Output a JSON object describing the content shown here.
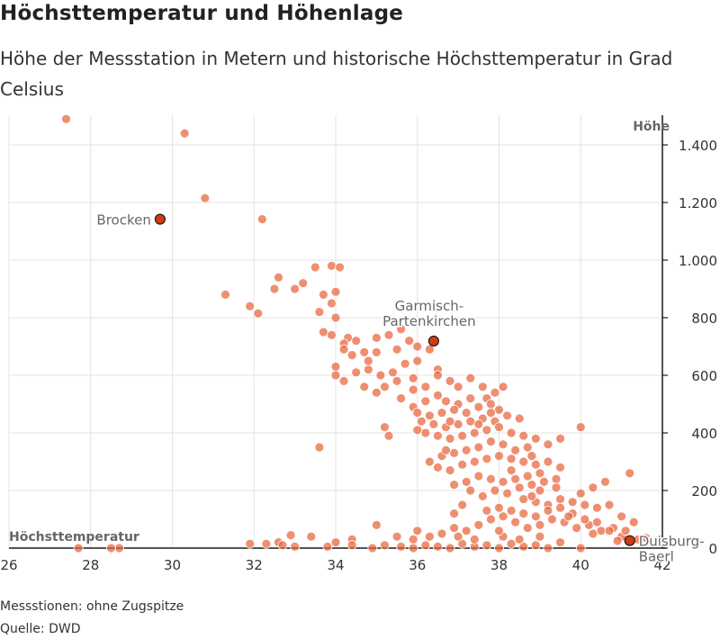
{
  "title": "Höchsttemperatur und Höhenlage",
  "subtitle": "Höhe der Messstation in Metern und historische Höchsttemperatur in Grad Celsius",
  "note": "Messstionen: ohne Zugspitze",
  "source": "Quelle: DWD",
  "colors": {
    "point": "#e8643c",
    "highlight": "#d23a12",
    "grid": "#e3e3e3",
    "axis": "#1a1a1a",
    "label": "#666666"
  },
  "chart_data": {
    "type": "scatter",
    "xlabel": "Höchsttemperatur",
    "ylabel": "Höhe",
    "xlim": [
      26,
      42
    ],
    "ylim": [
      0,
      1500
    ],
    "xticks": [
      26,
      28,
      30,
      32,
      34,
      36,
      38,
      40,
      42
    ],
    "xtick_labels": [
      "26",
      "28",
      "30",
      "32",
      "34",
      "36",
      "38",
      "40",
      "42"
    ],
    "yticks": [
      0,
      200,
      400,
      600,
      800,
      1000,
      1200,
      1400
    ],
    "ytick_labels": [
      "0",
      "200",
      "400",
      "600",
      "800",
      "1.000",
      "1.200",
      "1.400"
    ],
    "grid": true,
    "highlighted": [
      {
        "label": "Brocken",
        "x": 29.7,
        "y": 1142
      },
      {
        "label": "Garmisch-Partenkirchen",
        "x": 36.4,
        "y": 719
      },
      {
        "label": "Duisburg-Baerl",
        "x": 41.2,
        "y": 26
      }
    ],
    "points": [
      [
        27.4,
        1490
      ],
      [
        30.3,
        1440
      ],
      [
        30.8,
        1215
      ],
      [
        32.2,
        1142
      ],
      [
        32.6,
        940
      ],
      [
        32.5,
        900
      ],
      [
        33.0,
        900
      ],
      [
        33.2,
        920
      ],
      [
        31.3,
        880
      ],
      [
        31.9,
        840
      ],
      [
        32.1,
        815
      ],
      [
        33.5,
        975
      ],
      [
        33.9,
        980
      ],
      [
        34.1,
        975
      ],
      [
        33.7,
        880
      ],
      [
        33.9,
        850
      ],
      [
        34.0,
        890
      ],
      [
        33.6,
        820
      ],
      [
        34.0,
        800
      ],
      [
        33.7,
        750
      ],
      [
        33.9,
        740
      ],
      [
        34.3,
        730
      ],
      [
        34.2,
        710
      ],
      [
        34.5,
        720
      ],
      [
        35.0,
        730
      ],
      [
        35.3,
        740
      ],
      [
        35.6,
        760
      ],
      [
        35.8,
        720
      ],
      [
        36.0,
        700
      ],
      [
        35.5,
        690
      ],
      [
        35.0,
        680
      ],
      [
        34.7,
        680
      ],
      [
        34.4,
        670
      ],
      [
        34.0,
        630
      ],
      [
        34.0,
        600
      ],
      [
        34.2,
        580
      ],
      [
        34.5,
        610
      ],
      [
        34.8,
        620
      ],
      [
        35.1,
        600
      ],
      [
        35.4,
        610
      ],
      [
        35.7,
        640
      ],
      [
        36.0,
        650
      ],
      [
        36.3,
        690
      ],
      [
        36.5,
        620
      ],
      [
        35.9,
        590
      ],
      [
        35.5,
        580
      ],
      [
        35.2,
        560
      ],
      [
        35.0,
        540
      ],
      [
        35.6,
        520
      ],
      [
        35.9,
        550
      ],
      [
        36.2,
        560
      ],
      [
        36.5,
        600
      ],
      [
        36.8,
        580
      ],
      [
        37.0,
        560
      ],
      [
        37.3,
        590
      ],
      [
        37.6,
        560
      ],
      [
        37.9,
        540
      ],
      [
        38.1,
        560
      ],
      [
        37.7,
        520
      ],
      [
        37.3,
        520
      ],
      [
        37.0,
        500
      ],
      [
        36.7,
        510
      ],
      [
        36.5,
        530
      ],
      [
        36.2,
        510
      ],
      [
        35.9,
        490
      ],
      [
        36.0,
        470
      ],
      [
        36.3,
        460
      ],
      [
        36.6,
        470
      ],
      [
        36.9,
        480
      ],
      [
        37.2,
        470
      ],
      [
        37.5,
        490
      ],
      [
        37.8,
        500
      ],
      [
        38.0,
        480
      ],
      [
        38.2,
        460
      ],
      [
        37.9,
        440
      ],
      [
        37.6,
        450
      ],
      [
        37.3,
        440
      ],
      [
        37.0,
        430
      ],
      [
        36.7,
        420
      ],
      [
        36.4,
        430
      ],
      [
        36.1,
        440
      ],
      [
        36.2,
        400
      ],
      [
        36.5,
        390
      ],
      [
        36.8,
        380
      ],
      [
        37.1,
        390
      ],
      [
        37.4,
        400
      ],
      [
        37.7,
        410
      ],
      [
        38.0,
        420
      ],
      [
        38.3,
        400
      ],
      [
        38.6,
        390
      ],
      [
        38.9,
        380
      ],
      [
        39.2,
        360
      ],
      [
        39.5,
        380
      ],
      [
        38.7,
        350
      ],
      [
        38.4,
        340
      ],
      [
        38.1,
        360
      ],
      [
        37.8,
        370
      ],
      [
        37.5,
        350
      ],
      [
        37.2,
        340
      ],
      [
        36.9,
        330
      ],
      [
        36.6,
        320
      ],
      [
        36.3,
        300
      ],
      [
        36.5,
        280
      ],
      [
        36.8,
        270
      ],
      [
        37.1,
        290
      ],
      [
        37.4,
        300
      ],
      [
        37.7,
        310
      ],
      [
        38.0,
        320
      ],
      [
        38.3,
        310
      ],
      [
        38.6,
        300
      ],
      [
        38.9,
        290
      ],
      [
        39.2,
        300
      ],
      [
        39.5,
        280
      ],
      [
        39.0,
        260
      ],
      [
        38.7,
        250
      ],
      [
        38.4,
        240
      ],
      [
        38.1,
        230
      ],
      [
        37.8,
        240
      ],
      [
        37.5,
        250
      ],
      [
        37.2,
        230
      ],
      [
        36.9,
        220
      ],
      [
        37.9,
        200
      ],
      [
        38.2,
        190
      ],
      [
        38.5,
        210
      ],
      [
        38.8,
        220
      ],
      [
        39.1,
        230
      ],
      [
        39.4,
        210
      ],
      [
        38.6,
        170
      ],
      [
        38.9,
        160
      ],
      [
        39.2,
        150
      ],
      [
        39.5,
        170
      ],
      [
        39.8,
        160
      ],
      [
        40.1,
        150
      ],
      [
        40.4,
        140
      ],
      [
        40.7,
        150
      ],
      [
        40.0,
        190
      ],
      [
        40.3,
        210
      ],
      [
        40.6,
        230
      ],
      [
        41.2,
        260
      ],
      [
        40.0,
        420
      ],
      [
        41.3,
        90
      ],
      [
        41.0,
        110
      ],
      [
        40.8,
        70
      ],
      [
        40.5,
        60
      ],
      [
        40.2,
        80
      ],
      [
        39.9,
        70
      ],
      [
        39.6,
        90
      ],
      [
        39.3,
        100
      ],
      [
        39.0,
        80
      ],
      [
        38.7,
        70
      ],
      [
        38.4,
        90
      ],
      [
        38.1,
        110
      ],
      [
        37.8,
        100
      ],
      [
        37.5,
        80
      ],
      [
        37.2,
        60
      ],
      [
        36.9,
        70
      ],
      [
        36.6,
        50
      ],
      [
        36.3,
        40
      ],
      [
        36.9,
        120
      ],
      [
        37.1,
        150
      ],
      [
        38.0,
        140
      ],
      [
        38.3,
        130
      ],
      [
        38.6,
        120
      ],
      [
        38.9,
        110
      ],
      [
        39.2,
        130
      ],
      [
        39.5,
        140
      ],
      [
        39.8,
        120
      ],
      [
        40.1,
        100
      ],
      [
        40.4,
        90
      ],
      [
        40.7,
        60
      ],
      [
        41.0,
        40
      ],
      [
        41.4,
        30
      ],
      [
        41.6,
        35
      ],
      [
        40.9,
        25
      ],
      [
        35.2,
        420
      ],
      [
        35.3,
        390
      ],
      [
        34.7,
        560
      ],
      [
        34.2,
        690
      ],
      [
        34.8,
        650
      ],
      [
        33.6,
        350
      ],
      [
        35.0,
        80
      ],
      [
        34.4,
        30
      ],
      [
        33.4,
        40
      ],
      [
        32.9,
        45
      ],
      [
        32.6,
        20
      ],
      [
        32.3,
        15
      ],
      [
        31.9,
        15
      ],
      [
        32.7,
        10
      ],
      [
        33.0,
        5
      ],
      [
        33.8,
        5
      ],
      [
        34.0,
        20
      ],
      [
        34.4,
        10
      ],
      [
        34.9,
        0
      ],
      [
        35.2,
        10
      ],
      [
        35.6,
        5
      ],
      [
        35.9,
        0
      ],
      [
        36.2,
        10
      ],
      [
        36.5,
        5
      ],
      [
        36.8,
        0
      ],
      [
        37.1,
        15
      ],
      [
        37.4,
        5
      ],
      [
        37.7,
        10
      ],
      [
        38.0,
        0
      ],
      [
        38.3,
        15
      ],
      [
        38.6,
        5
      ],
      [
        38.9,
        10
      ],
      [
        39.2,
        0
      ],
      [
        39.5,
        20
      ],
      [
        40.0,
        0
      ],
      [
        35.5,
        40
      ],
      [
        35.9,
        30
      ],
      [
        36.0,
        60
      ],
      [
        37.0,
        40
      ],
      [
        37.4,
        30
      ],
      [
        38.1,
        40
      ],
      [
        38.5,
        30
      ],
      [
        39.0,
        40
      ],
      [
        28.7,
        0
      ],
      [
        28.5,
        0
      ],
      [
        27.7,
        0
      ],
      [
        38.8,
        180
      ],
      [
        39.0,
        200
      ],
      [
        37.6,
        180
      ],
      [
        38.3,
        270
      ],
      [
        37.3,
        200
      ],
      [
        36.7,
        340
      ],
      [
        37.5,
        430
      ],
      [
        38.5,
        450
      ],
      [
        36.0,
        410
      ],
      [
        37.8,
        470
      ],
      [
        36.8,
        440
      ],
      [
        38.8,
        320
      ],
      [
        39.4,
        240
      ],
      [
        39.7,
        110
      ],
      [
        40.3,
        50
      ],
      [
        41.1,
        60
      ],
      [
        38.0,
        60
      ],
      [
        37.7,
        130
      ]
    ]
  }
}
